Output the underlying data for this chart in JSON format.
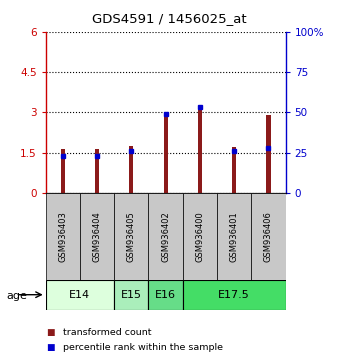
{
  "title": "GDS4591 / 1456025_at",
  "samples": [
    "GSM936403",
    "GSM936404",
    "GSM936405",
    "GSM936402",
    "GSM936400",
    "GSM936401",
    "GSM936406"
  ],
  "transformed_counts": [
    1.65,
    1.65,
    1.75,
    3.02,
    3.25,
    1.72,
    2.9
  ],
  "percentile_ranks_left": [
    1.38,
    1.38,
    1.55,
    2.95,
    3.2,
    1.55,
    1.68
  ],
  "left_ylim": [
    0,
    6
  ],
  "right_ylim": [
    0,
    100
  ],
  "left_yticks": [
    0,
    1.5,
    3.0,
    4.5,
    6
  ],
  "left_yticklabels": [
    "0",
    "1.5",
    "3",
    "4.5",
    "6"
  ],
  "right_yticks": [
    0,
    25,
    50,
    75,
    100
  ],
  "right_yticklabels": [
    "0",
    "25",
    "50",
    "75",
    "100%"
  ],
  "bar_color": "#8B1A1A",
  "dot_color": "#0000CD",
  "age_groups": [
    {
      "label": "E14",
      "samples": [
        0,
        1
      ],
      "color": "#DDFFDD"
    },
    {
      "label": "E15",
      "samples": [
        2
      ],
      "color": "#AAEEBB"
    },
    {
      "label": "E16",
      "samples": [
        3
      ],
      "color": "#66DD88"
    },
    {
      "label": "E17.5",
      "samples": [
        4,
        5,
        6
      ],
      "color": "#44DD66"
    }
  ],
  "sample_box_color": "#C8C8C8",
  "legend_items": [
    {
      "color": "#8B1A1A",
      "label": "transformed count"
    },
    {
      "color": "#0000CD",
      "label": "percentile rank within the sample"
    }
  ]
}
